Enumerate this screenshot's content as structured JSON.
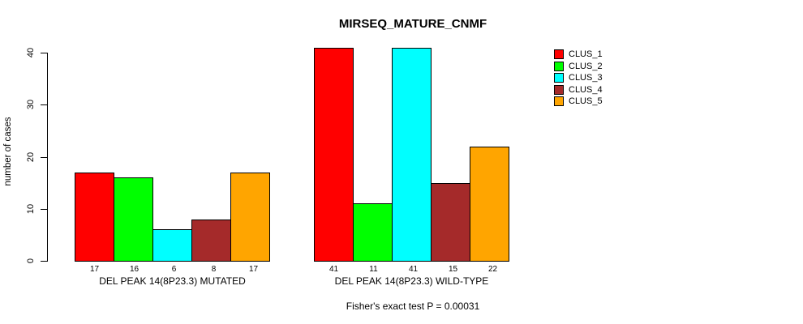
{
  "chart_data": {
    "type": "bar",
    "title": "MIRSEQ_MATURE_CNMF",
    "ylabel": "number of cases",
    "xlabel": "",
    "ylim": [
      0,
      40
    ],
    "yticks": [
      0,
      10,
      20,
      30,
      40
    ],
    "grid": false,
    "legend_position": "right-outside",
    "categories": [
      "DEL PEAK 14(8P23.3) MUTATED",
      "DEL PEAK 14(8P23.3) WILD-TYPE"
    ],
    "series": [
      {
        "name": "CLUS_1",
        "color": "#FF0000",
        "values": [
          17,
          41
        ]
      },
      {
        "name": "CLUS_2",
        "color": "#00FF00",
        "values": [
          16,
          11
        ]
      },
      {
        "name": "CLUS_3",
        "color": "#00FFFF",
        "values": [
          6,
          41
        ]
      },
      {
        "name": "CLUS_4",
        "color": "#A52A2A",
        "values": [
          8,
          15
        ]
      },
      {
        "name": "CLUS_5",
        "color": "#FFA500",
        "values": [
          17,
          22
        ]
      }
    ],
    "bar_labels": [
      [
        17,
        16,
        6,
        8,
        17
      ],
      [
        41,
        11,
        41,
        15,
        22
      ]
    ],
    "annotation": "Fisher's exact test P = 0.00031"
  },
  "colors": {
    "background": "#FFFFFF",
    "axis": "#000000",
    "bar_border": "#000000",
    "text": "#000000"
  }
}
